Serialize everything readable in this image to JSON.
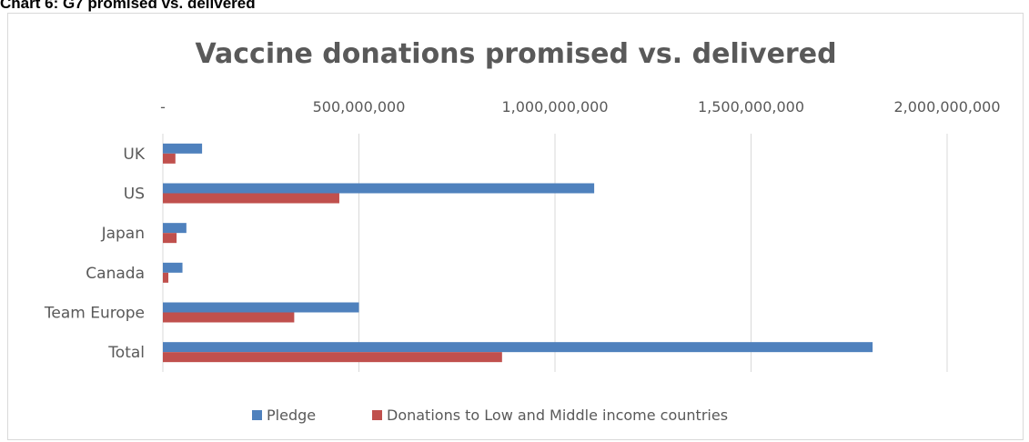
{
  "caption": "Chart 6: G7 promised vs. delivered",
  "colors": {
    "pledge": "#4f81bd",
    "donations": "#c0504d",
    "grid": "#d9d9d9",
    "text": "#595959"
  },
  "chart_data": {
    "type": "bar",
    "orientation": "horizontal",
    "title": "Vaccine donations promised vs. delivered",
    "xlabel": "",
    "ylabel": "",
    "xlim": [
      0,
      2000000000
    ],
    "x_ticks": [
      0,
      500000000,
      1000000000,
      1500000000,
      2000000000
    ],
    "x_tick_labels": [
      "-",
      "500,000,000",
      "1,000,000,000",
      "1,500,000,000",
      "2,000,000,000"
    ],
    "grid": true,
    "legend_position": "bottom",
    "categories": [
      "UK",
      "US",
      "Japan",
      "Canada",
      "Team Europe",
      "Total"
    ],
    "series": [
      {
        "name": "Pledge",
        "values": [
          100000000,
          1100000000,
          60000000,
          50000000,
          500000000,
          1810000000
        ]
      },
      {
        "name": "Donations to Low and Middle income countries",
        "values": [
          32000000,
          450000000,
          35000000,
          14000000,
          335000000,
          865000000
        ]
      }
    ]
  }
}
